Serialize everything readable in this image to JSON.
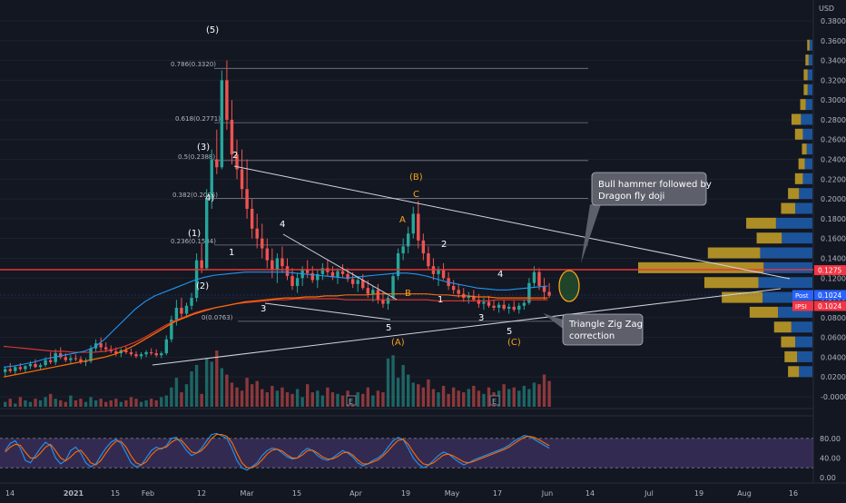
{
  "chart_data": {
    "type": "candlestick",
    "symbol_currency": "USD",
    "y_ticks": [
      "0.3800",
      "0.3600",
      "0.3400",
      "0.3200",
      "0.3000",
      "0.2800",
      "0.2600",
      "0.2400",
      "0.2200",
      "0.2000",
      "0.1800",
      "0.1600",
      "0.1400",
      "0.1200",
      "0.1000",
      "0.0800",
      "0.0600",
      "0.0400",
      "0.0200",
      "-0.0000"
    ],
    "ylim": [
      -0.002,
      0.385
    ],
    "x_ticks": [
      "14",
      "2021",
      "15",
      "Feb",
      "12",
      "Mar",
      "15",
      "Apr",
      "19",
      "May",
      "17",
      "Jun",
      "14",
      "Jul",
      "19",
      "Aug",
      "16"
    ],
    "price_labels": [
      {
        "text": "0.1275",
        "value": 0.1275,
        "color": "#f23645"
      },
      {
        "text": "0.1024",
        "value": 0.1024,
        "color": "#2962ff",
        "tag": "Post"
      },
      {
        "text": "0.1024",
        "value": 0.1024,
        "color": "#f23645",
        "tag": "IPSI"
      }
    ],
    "fib_levels": [
      {
        "label": "0.786(0.3320)",
        "value": 0.332
      },
      {
        "label": "0.618(0.2771)",
        "value": 0.2771
      },
      {
        "label": "0.5(0.2388)",
        "value": 0.2388
      },
      {
        "label": "0.382(0.2005)",
        "value": 0.2005
      },
      {
        "label": "0.236(0.1534)",
        "value": 0.1534
      },
      {
        "label": "0(0.0763)",
        "value": 0.0763
      }
    ],
    "wave_labels_white": [
      "(5)",
      "(3)",
      "(1)",
      "(2)",
      "4)",
      "2",
      "1",
      "4",
      "3",
      "5",
      "2",
      "1",
      "4",
      "3",
      "5"
    ],
    "wave_labels_orange": [
      "(B)",
      "C",
      "A",
      "B",
      "(A)",
      "(C)"
    ],
    "annotations": [
      {
        "text": [
          "Bull hammer followed by",
          "Dragon fly doji"
        ]
      },
      {
        "text": [
          "Triangle Zig Zag",
          "correction"
        ]
      }
    ],
    "stoch_ticks": [
      "80.00",
      "40.00",
      "0.00"
    ],
    "stoch_band": [
      20,
      80
    ],
    "colors": {
      "up": "#26a69a",
      "down": "#ef5350",
      "ma_blue": "#2196f3",
      "ma_orange": "#ff6d00",
      "ma_red": "#e53935",
      "stoch_band": "#7e57c2",
      "background": "#131722"
    },
    "candles": [
      [
        0.025,
        0.03,
        0.02,
        0.028
      ],
      [
        0.028,
        0.034,
        0.024,
        0.026
      ],
      [
        0.026,
        0.031,
        0.022,
        0.03
      ],
      [
        0.03,
        0.034,
        0.026,
        0.028
      ],
      [
        0.028,
        0.032,
        0.025,
        0.031
      ],
      [
        0.031,
        0.036,
        0.028,
        0.033
      ],
      [
        0.033,
        0.038,
        0.029,
        0.03
      ],
      [
        0.03,
        0.034,
        0.027,
        0.032
      ],
      [
        0.032,
        0.04,
        0.03,
        0.037
      ],
      [
        0.037,
        0.045,
        0.033,
        0.035
      ],
      [
        0.035,
        0.048,
        0.032,
        0.044
      ],
      [
        0.044,
        0.05,
        0.038,
        0.04
      ],
      [
        0.04,
        0.044,
        0.035,
        0.037
      ],
      [
        0.037,
        0.042,
        0.033,
        0.039
      ],
      [
        0.039,
        0.043,
        0.036,
        0.038
      ],
      [
        0.038,
        0.041,
        0.033,
        0.035
      ],
      [
        0.035,
        0.039,
        0.031,
        0.036
      ],
      [
        0.036,
        0.052,
        0.034,
        0.049
      ],
      [
        0.049,
        0.058,
        0.045,
        0.054
      ],
      [
        0.054,
        0.06,
        0.046,
        0.05
      ],
      [
        0.05,
        0.055,
        0.045,
        0.048
      ],
      [
        0.048,
        0.052,
        0.044,
        0.046
      ],
      [
        0.046,
        0.05,
        0.041,
        0.044
      ],
      [
        0.044,
        0.049,
        0.04,
        0.047
      ],
      [
        0.047,
        0.051,
        0.043,
        0.045
      ],
      [
        0.045,
        0.049,
        0.041,
        0.043
      ],
      [
        0.043,
        0.046,
        0.039,
        0.041
      ],
      [
        0.041,
        0.045,
        0.038,
        0.043
      ],
      [
        0.043,
        0.047,
        0.04,
        0.045
      ],
      [
        0.045,
        0.049,
        0.042,
        0.044
      ],
      [
        0.044,
        0.048,
        0.04,
        0.042
      ],
      [
        0.042,
        0.046,
        0.039,
        0.044
      ],
      [
        0.044,
        0.062,
        0.042,
        0.058
      ],
      [
        0.058,
        0.082,
        0.055,
        0.078
      ],
      [
        0.078,
        0.098,
        0.072,
        0.09
      ],
      [
        0.09,
        0.1,
        0.08,
        0.084
      ],
      [
        0.084,
        0.095,
        0.08,
        0.092
      ],
      [
        0.092,
        0.105,
        0.088,
        0.1
      ],
      [
        0.1,
        0.145,
        0.096,
        0.138
      ],
      [
        0.138,
        0.155,
        0.125,
        0.13
      ],
      [
        0.13,
        0.21,
        0.128,
        0.2
      ],
      [
        0.2,
        0.25,
        0.19,
        0.24
      ],
      [
        0.24,
        0.27,
        0.225,
        0.232
      ],
      [
        0.232,
        0.33,
        0.23,
        0.32
      ],
      [
        0.32,
        0.34,
        0.27,
        0.28
      ],
      [
        0.28,
        0.3,
        0.235,
        0.245
      ],
      [
        0.245,
        0.26,
        0.22,
        0.23
      ],
      [
        0.23,
        0.25,
        0.2,
        0.21
      ],
      [
        0.21,
        0.24,
        0.18,
        0.19
      ],
      [
        0.19,
        0.2,
        0.16,
        0.17
      ],
      [
        0.17,
        0.185,
        0.15,
        0.16
      ],
      [
        0.16,
        0.175,
        0.14,
        0.15
      ],
      [
        0.15,
        0.16,
        0.13,
        0.138
      ],
      [
        0.138,
        0.15,
        0.12,
        0.128
      ],
      [
        0.128,
        0.145,
        0.115,
        0.14
      ],
      [
        0.14,
        0.152,
        0.125,
        0.132
      ],
      [
        0.132,
        0.14,
        0.118,
        0.122
      ],
      [
        0.122,
        0.13,
        0.108,
        0.112
      ],
      [
        0.112,
        0.125,
        0.105,
        0.12
      ],
      [
        0.12,
        0.132,
        0.112,
        0.128
      ],
      [
        0.128,
        0.138,
        0.12,
        0.125
      ],
      [
        0.125,
        0.132,
        0.115,
        0.118
      ],
      [
        0.118,
        0.128,
        0.11,
        0.124
      ],
      [
        0.124,
        0.135,
        0.118,
        0.13
      ],
      [
        0.13,
        0.138,
        0.122,
        0.126
      ],
      [
        0.126,
        0.132,
        0.118,
        0.121
      ],
      [
        0.121,
        0.13,
        0.114,
        0.127
      ],
      [
        0.127,
        0.134,
        0.12,
        0.124
      ],
      [
        0.124,
        0.13,
        0.116,
        0.119
      ],
      [
        0.119,
        0.126,
        0.11,
        0.114
      ],
      [
        0.114,
        0.122,
        0.106,
        0.118
      ],
      [
        0.118,
        0.124,
        0.108,
        0.11
      ],
      [
        0.11,
        0.118,
        0.1,
        0.104
      ],
      [
        0.104,
        0.112,
        0.096,
        0.108
      ],
      [
        0.108,
        0.114,
        0.094,
        0.098
      ],
      [
        0.098,
        0.106,
        0.09,
        0.094
      ],
      [
        0.094,
        0.102,
        0.088,
        0.1
      ],
      [
        0.1,
        0.125,
        0.098,
        0.122
      ],
      [
        0.122,
        0.15,
        0.118,
        0.145
      ],
      [
        0.145,
        0.16,
        0.138,
        0.152
      ],
      [
        0.152,
        0.172,
        0.145,
        0.165
      ],
      [
        0.165,
        0.192,
        0.16,
        0.185
      ],
      [
        0.185,
        0.198,
        0.15,
        0.158
      ],
      [
        0.158,
        0.165,
        0.138,
        0.145
      ],
      [
        0.145,
        0.152,
        0.128,
        0.132
      ],
      [
        0.132,
        0.14,
        0.118,
        0.124
      ],
      [
        0.124,
        0.132,
        0.112,
        0.128
      ],
      [
        0.128,
        0.135,
        0.118,
        0.12
      ],
      [
        0.12,
        0.126,
        0.108,
        0.112
      ],
      [
        0.112,
        0.118,
        0.104,
        0.108
      ],
      [
        0.108,
        0.114,
        0.1,
        0.104
      ],
      [
        0.104,
        0.11,
        0.096,
        0.1
      ],
      [
        0.1,
        0.106,
        0.094,
        0.102
      ],
      [
        0.102,
        0.108,
        0.096,
        0.098
      ],
      [
        0.098,
        0.104,
        0.09,
        0.094
      ],
      [
        0.094,
        0.1,
        0.088,
        0.096
      ],
      [
        0.096,
        0.102,
        0.09,
        0.092
      ],
      [
        0.092,
        0.098,
        0.087,
        0.09
      ],
      [
        0.09,
        0.096,
        0.085,
        0.093
      ],
      [
        0.093,
        0.098,
        0.087,
        0.089
      ],
      [
        0.089,
        0.094,
        0.084,
        0.091
      ],
      [
        0.091,
        0.097,
        0.086,
        0.088
      ],
      [
        0.088,
        0.095,
        0.084,
        0.092
      ],
      [
        0.092,
        0.098,
        0.088,
        0.095
      ],
      [
        0.095,
        0.12,
        0.093,
        0.115
      ],
      [
        0.115,
        0.132,
        0.11,
        0.126
      ],
      [
        0.126,
        0.13,
        0.108,
        0.112
      ],
      [
        0.112,
        0.12,
        0.098,
        0.106
      ],
      [
        0.106,
        0.115,
        0.1,
        0.102
      ]
    ],
    "volume": [
      3,
      5,
      2,
      6,
      4,
      3,
      5,
      4,
      6,
      8,
      5,
      4,
      3,
      7,
      4,
      5,
      3,
      6,
      4,
      5,
      3,
      4,
      5,
      3,
      4,
      6,
      5,
      3,
      4,
      5,
      4,
      6,
      7,
      12,
      18,
      9,
      14,
      22,
      26,
      8,
      30,
      28,
      35,
      24,
      20,
      15,
      12,
      10,
      18,
      14,
      16,
      11,
      9,
      13,
      10,
      12,
      9,
      8,
      11,
      6,
      14,
      9,
      10,
      7,
      12,
      9,
      8,
      7,
      10,
      6,
      9,
      8,
      12,
      7,
      10,
      9,
      30,
      32,
      18,
      26,
      20,
      15,
      14,
      12,
      17,
      11,
      9,
      13,
      8,
      12,
      10,
      9,
      11,
      13,
      10,
      8,
      12,
      9,
      10,
      14,
      11,
      12,
      10,
      13,
      11,
      15,
      14,
      20,
      16
    ],
    "stoch_k": [
      55,
      70,
      75,
      60,
      35,
      30,
      45,
      60,
      72,
      65,
      40,
      28,
      35,
      55,
      62,
      50,
      30,
      22,
      28,
      45,
      60,
      72,
      78,
      70,
      50,
      30,
      22,
      25,
      40,
      55,
      62,
      58,
      65,
      80,
      82,
      70,
      55,
      45,
      50,
      60,
      75,
      88,
      90,
      85,
      80,
      60,
      35,
      20,
      15,
      22,
      30,
      45,
      55,
      60,
      58,
      50,
      42,
      38,
      40,
      52,
      60,
      55,
      45,
      38,
      35,
      40,
      48,
      55,
      50,
      42,
      30,
      24,
      28,
      35,
      40,
      48,
      62,
      75,
      82,
      78,
      60,
      40,
      28,
      20,
      25,
      35,
      45,
      52,
      48,
      40,
      32,
      26,
      30,
      36,
      40,
      44,
      48,
      52,
      56,
      60,
      66,
      74,
      80,
      86,
      84,
      78,
      72,
      66,
      60
    ],
    "stoch_d": [
      52,
      62,
      68,
      66,
      52,
      40,
      40,
      50,
      62,
      68,
      55,
      40,
      34,
      42,
      52,
      56,
      44,
      30,
      26,
      35,
      50,
      64,
      74,
      74,
      62,
      44,
      30,
      26,
      32,
      46,
      56,
      60,
      62,
      72,
      78,
      76,
      64,
      52,
      50,
      55,
      66,
      80,
      88,
      88,
      84,
      72,
      50,
      30,
      20,
      20,
      26,
      36,
      48,
      56,
      58,
      54,
      46,
      40,
      40,
      46,
      55,
      56,
      50,
      42,
      38,
      38,
      43,
      50,
      52,
      46,
      36,
      28,
      28,
      32,
      36,
      44,
      54,
      66,
      76,
      78,
      68,
      52,
      38,
      28,
      26,
      30,
      38,
      46,
      48,
      44,
      38,
      32,
      30,
      33,
      37,
      41,
      45,
      49,
      53,
      57,
      62,
      69,
      76,
      82,
      84,
      82,
      77,
      71,
      65
    ],
    "ma_blue": [
      0.03,
      0.031,
      0.033,
      0.035,
      0.038,
      0.04,
      0.042,
      0.044,
      0.046,
      0.05,
      0.058,
      0.068,
      0.078,
      0.088,
      0.096,
      0.102,
      0.106,
      0.11,
      0.114,
      0.118,
      0.121,
      0.123,
      0.124,
      0.125,
      0.126,
      0.126,
      0.126,
      0.126,
      0.126,
      0.125,
      0.124,
      0.123,
      0.122,
      0.121,
      0.12,
      0.121,
      0.122,
      0.123,
      0.124,
      0.125,
      0.125,
      0.124,
      0.122,
      0.119,
      0.116,
      0.114,
      0.112,
      0.11,
      0.109,
      0.108,
      0.108,
      0.109,
      0.11,
      0.111,
      0.112
    ],
    "ma_orange": [
      0.02,
      0.022,
      0.024,
      0.026,
      0.028,
      0.03,
      0.032,
      0.034,
      0.036,
      0.038,
      0.04,
      0.043,
      0.047,
      0.052,
      0.058,
      0.064,
      0.07,
      0.076,
      0.08,
      0.084,
      0.087,
      0.09,
      0.092,
      0.094,
      0.096,
      0.097,
      0.098,
      0.099,
      0.1,
      0.1,
      0.101,
      0.101,
      0.102,
      0.102,
      0.103,
      0.103,
      0.103,
      0.104,
      0.104,
      0.104,
      0.104,
      0.104,
      0.104,
      0.103,
      0.103,
      0.102,
      0.102,
      0.101,
      0.101,
      0.1,
      0.1,
      0.1,
      0.1,
      0.1,
      0.1
    ],
    "ma_red": [
      0.051,
      0.05,
      0.049,
      0.048,
      0.047,
      0.046,
      0.046,
      0.045,
      0.045,
      0.045,
      0.046,
      0.048,
      0.051,
      0.055,
      0.06,
      0.066,
      0.072,
      0.077,
      0.081,
      0.085,
      0.088,
      0.09,
      0.092,
      0.094,
      0.095,
      0.096,
      0.097,
      0.098,
      0.098,
      0.099,
      0.099,
      0.099,
      0.099,
      0.099,
      0.098,
      0.098,
      0.098,
      0.098,
      0.098,
      0.098,
      0.098,
      0.098,
      0.098,
      0.097,
      0.097,
      0.097,
      0.097,
      0.097,
      0.097,
      0.098,
      0.098,
      0.098,
      0.098,
      0.098,
      0.098
    ],
    "volume_profile": [
      {
        "price": 0.025,
        "total": 0.14,
        "up": 0.55
      },
      {
        "price": 0.04,
        "total": 0.16,
        "up": 0.55
      },
      {
        "price": 0.055,
        "total": 0.18,
        "up": 0.55
      },
      {
        "price": 0.07,
        "total": 0.22,
        "up": 0.55
      },
      {
        "price": 0.085,
        "total": 0.36,
        "up": 0.55
      },
      {
        "price": 0.1,
        "total": 0.52,
        "up": 0.55
      },
      {
        "price": 0.115,
        "total": 0.62,
        "up": 0.5
      },
      {
        "price": 0.13,
        "total": 1.0,
        "up": 0.28
      },
      {
        "price": 0.145,
        "total": 0.6,
        "up": 0.5
      },
      {
        "price": 0.16,
        "total": 0.32,
        "up": 0.55
      },
      {
        "price": 0.175,
        "total": 0.38,
        "up": 0.55
      },
      {
        "price": 0.19,
        "total": 0.18,
        "up": 0.55
      },
      {
        "price": 0.205,
        "total": 0.14,
        "up": 0.55
      },
      {
        "price": 0.22,
        "total": 0.1,
        "up": 0.55
      },
      {
        "price": 0.235,
        "total": 0.08,
        "up": 0.55
      },
      {
        "price": 0.25,
        "total": 0.06,
        "up": 0.55
      },
      {
        "price": 0.265,
        "total": 0.1,
        "up": 0.55
      },
      {
        "price": 0.28,
        "total": 0.12,
        "up": 0.55
      },
      {
        "price": 0.295,
        "total": 0.07,
        "up": 0.55
      },
      {
        "price": 0.31,
        "total": 0.05,
        "up": 0.55
      },
      {
        "price": 0.325,
        "total": 0.05,
        "up": 0.55
      },
      {
        "price": 0.34,
        "total": 0.04,
        "up": 0.55
      },
      {
        "price": 0.355,
        "total": 0.03,
        "up": 0.55
      }
    ]
  }
}
